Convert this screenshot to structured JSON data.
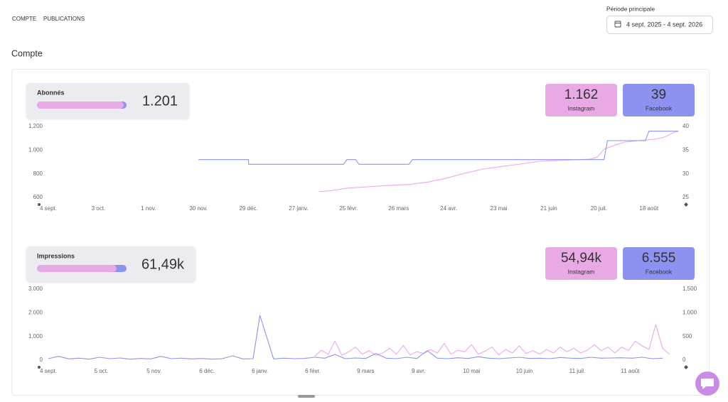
{
  "nav": {
    "tabs": [
      "COMPTE",
      "PUBLICATIONS"
    ]
  },
  "period": {
    "label": "Période principale",
    "value": "4 sept. 2025 - 4 sept. 2026"
  },
  "section_title": "Compte",
  "panels": [
    {
      "title": "Abonnés",
      "total": "1.201",
      "stats": [
        "1.162",
        "39"
      ]
    },
    {
      "title": "Impressions",
      "total": "61,49k",
      "stats": [
        "54,94k",
        "6.555"
      ]
    }
  ],
  "chart_data": [
    {
      "type": "line",
      "xlim": [
        0,
        365
      ],
      "xticks": [
        {
          "value": 0,
          "label": "4 sept."
        },
        {
          "value": 29,
          "label": "3 oct."
        },
        {
          "value": 58,
          "label": "1 nov."
        },
        {
          "value": 87,
          "label": "30 nov."
        },
        {
          "value": 116,
          "label": "29 déc."
        },
        {
          "value": 145,
          "label": "27 janv."
        },
        {
          "value": 174,
          "label": "25 févr."
        },
        {
          "value": 203,
          "label": "26 mars"
        },
        {
          "value": 232,
          "label": "24 avr."
        },
        {
          "value": 261,
          "label": "23 mai"
        },
        {
          "value": 290,
          "label": "21 juin"
        },
        {
          "value": 319,
          "label": "20 juil."
        },
        {
          "value": 348,
          "label": "18 août"
        }
      ],
      "ylim": [
        600,
        1200
      ],
      "yticks": [
        600,
        800,
        {
          "value": 1000,
          "label": "1.000"
        },
        {
          "value": 1200,
          "label": "1.200"
        }
      ],
      "y2lim": [
        25,
        40
      ],
      "y2ticks": [
        25,
        30,
        35,
        40
      ],
      "series": [
        {
          "name": "Instagram",
          "color": "#f0a6ea",
          "card_color": "#e9a9e4",
          "x": [
            157,
            165,
            174,
            185,
            195,
            209,
            220,
            230,
            240,
            252,
            262,
            275,
            285,
            300,
            314,
            318,
            322,
            328,
            334,
            342,
            351,
            357,
            363,
            365
          ],
          "values": [
            648,
            660,
            680,
            690,
            700,
            710,
            730,
            760,
            800,
            840,
            860,
            885,
            906,
            915,
            924,
            940,
            1008,
            1040,
            1068,
            1080,
            1092,
            1110,
            1152,
            1158
          ]
        },
        {
          "name": "Facebook",
          "color": "#8e93ec",
          "card_color": "#8d91f0",
          "axis": "y2",
          "x": [
            87,
            116,
            116,
            171,
            173,
            178,
            180,
            209,
            211,
            322,
            324,
            346,
            348,
            365
          ],
          "values": [
            33,
            33,
            32,
            32,
            33,
            33,
            32,
            32,
            33,
            33,
            37,
            37,
            39,
            39
          ]
        }
      ]
    },
    {
      "type": "line",
      "xlim": [
        0,
        365
      ],
      "xticks": [
        {
          "value": 0,
          "label": "4 sept."
        },
        {
          "value": 31,
          "label": "5 oct."
        },
        {
          "value": 62,
          "label": "5 nov."
        },
        {
          "value": 93,
          "label": "6 déc."
        },
        {
          "value": 124,
          "label": "6 janv."
        },
        {
          "value": 155,
          "label": "6 févr."
        },
        {
          "value": 186,
          "label": "9 mars"
        },
        {
          "value": 217,
          "label": "9 avr."
        },
        {
          "value": 248,
          "label": "10 mai"
        },
        {
          "value": 279,
          "label": "10 juin"
        },
        {
          "value": 310,
          "label": "11 juil."
        },
        {
          "value": 341,
          "label": "11 août"
        }
      ],
      "ylim": [
        0,
        3000
      ],
      "yticks": [
        0,
        {
          "value": 1000,
          "label": "1.000"
        },
        {
          "value": 2000,
          "label": "2.000"
        },
        {
          "value": 3000,
          "label": "3.000"
        }
      ],
      "y2lim": [
        0,
        1500
      ],
      "y2ticks": [
        0,
        500,
        {
          "value": 1000,
          "label": "1.000"
        },
        {
          "value": 1500,
          "label": "1.500"
        }
      ],
      "series": [
        {
          "name": "Instagram",
          "color": "#f0a6ea",
          "card_color": "#e9a9e4",
          "x": [
            156,
            160,
            164,
            168,
            172,
            176,
            180,
            184,
            188,
            192,
            196,
            200,
            204,
            208,
            212,
            216,
            220,
            224,
            228,
            232,
            236,
            240,
            244,
            248,
            252,
            256,
            260,
            264,
            268,
            272,
            276,
            280,
            284,
            288,
            292,
            296,
            300,
            304,
            308,
            312,
            316,
            320,
            324,
            328,
            332,
            336,
            340,
            344,
            348,
            352,
            356,
            360,
            364
          ],
          "values": [
            150,
            420,
            250,
            800,
            200,
            350,
            550,
            250,
            400,
            200,
            300,
            500,
            250,
            620,
            220,
            350,
            280,
            450,
            300,
            700,
            250,
            420,
            350,
            650,
            250,
            380,
            550,
            220,
            450,
            300,
            600,
            280,
            400,
            250,
            450,
            300,
            550,
            350,
            500,
            300,
            420,
            650,
            400,
            550,
            300,
            550,
            400,
            800,
            600,
            450,
            1500,
            500,
            250
          ]
        },
        {
          "name": "Facebook",
          "color": "#8e93ec",
          "card_color": "#8d91f0",
          "axis": "y2",
          "x": [
            0,
            6,
            12,
            18,
            24,
            30,
            36,
            42,
            48,
            54,
            60,
            66,
            72,
            78,
            84,
            90,
            96,
            102,
            108,
            114,
            120,
            124,
            132,
            138,
            144,
            150,
            156,
            162,
            168,
            174,
            180,
            186,
            192,
            198,
            204,
            210,
            216,
            222,
            228,
            234,
            240,
            246,
            252,
            258,
            264,
            270,
            276,
            282,
            288,
            294,
            300,
            306,
            312,
            318,
            324,
            330,
            336,
            342,
            348,
            354,
            360
          ],
          "values": [
            30,
            80,
            25,
            40,
            20,
            60,
            30,
            45,
            20,
            35,
            25,
            80,
            30,
            40,
            25,
            35,
            20,
            30,
            90,
            25,
            30,
            945,
            25,
            40,
            30,
            35,
            60,
            40,
            120,
            30,
            45,
            35,
            140,
            40,
            30,
            60,
            35,
            200,
            40,
            30,
            50,
            35,
            70,
            40,
            30,
            45,
            60,
            35,
            40,
            30,
            55,
            40,
            35,
            60,
            40,
            45,
            50,
            40,
            60,
            30,
            40
          ]
        }
      ]
    }
  ]
}
